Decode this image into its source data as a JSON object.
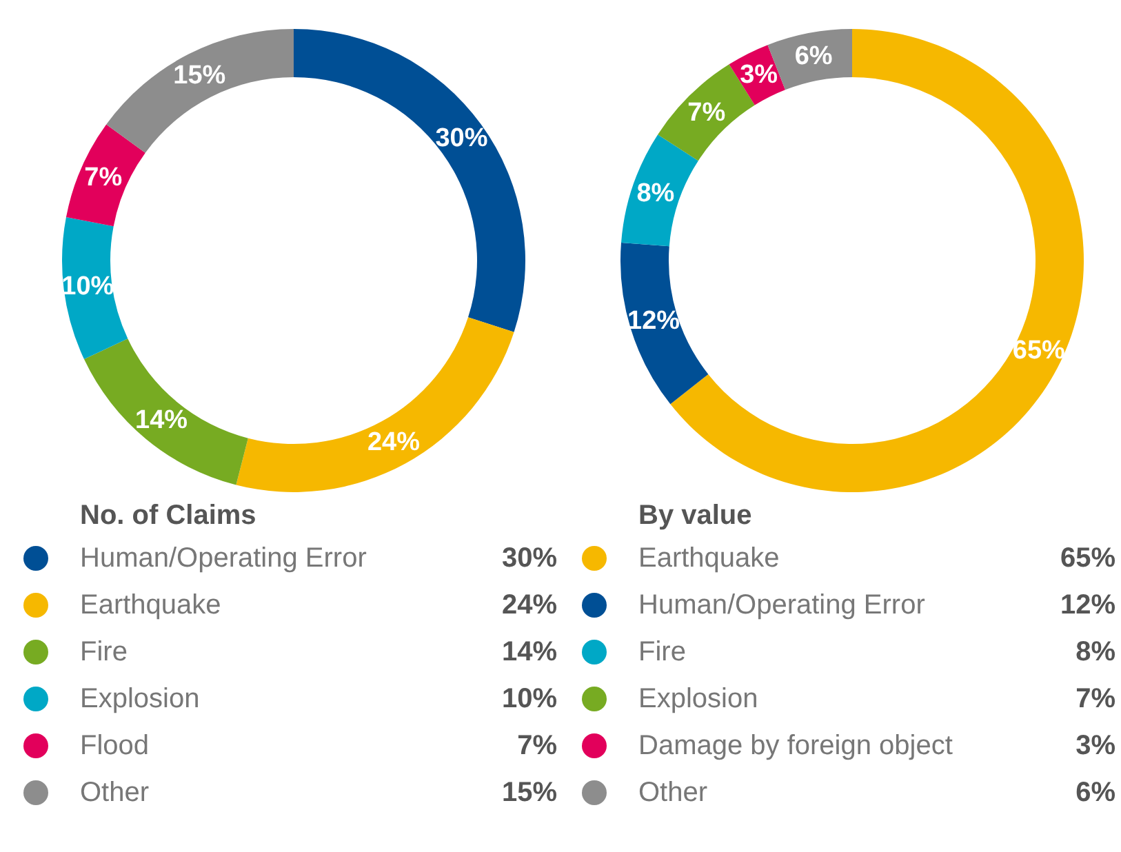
{
  "chart_data": [
    {
      "type": "donut",
      "title": "No. of Claims",
      "categories": [
        "Human/Operating Error",
        "Earthquake",
        "Fire",
        "Explosion",
        "Flood",
        "Other"
      ],
      "values": [
        30,
        24,
        14,
        10,
        7,
        15
      ],
      "value_labels": [
        "30%",
        "24%",
        "14%",
        "10%",
        "7%",
        "15%"
      ],
      "colors": [
        "#004f95",
        "#f6b800",
        "#77ab22",
        "#00a8c6",
        "#e2005b",
        "#8d8d8d"
      ],
      "legend": "bottom"
    },
    {
      "type": "donut",
      "title": "By value",
      "categories": [
        "Earthquake",
        "Human/Operating Error",
        "Fire",
        "Explosion",
        "Damage by foreign object",
        "Other"
      ],
      "values": [
        65,
        12,
        8,
        7,
        3,
        6
      ],
      "value_labels": [
        "65%",
        "12%",
        "8%",
        "7%",
        "3%",
        "6%"
      ],
      "colors": [
        "#f6b800",
        "#004f95",
        "#00a8c6",
        "#77ab22",
        "#e2005b",
        "#8d8d8d"
      ],
      "legend": "bottom"
    }
  ]
}
